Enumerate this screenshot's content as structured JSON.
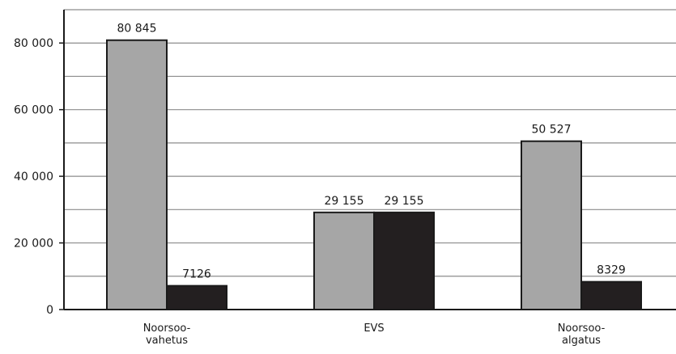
{
  "chart_data": {
    "type": "bar",
    "title": "",
    "xlabel": "",
    "ylabel": "",
    "categories": [
      [
        "Noorsoo-",
        "vahetus"
      ],
      [
        "EVS"
      ],
      [
        "Noorsoo-",
        "algatus"
      ]
    ],
    "series": [
      {
        "values": [
          80845,
          29155,
          50527
        ],
        "labels": [
          "80 845",
          "29 155",
          "50 527"
        ],
        "color": "#a6a6a6"
      },
      {
        "values": [
          7126,
          29155,
          8329
        ],
        "labels": [
          "7126",
          "29 155",
          "8329"
        ],
        "color": "#231f20"
      }
    ],
    "ylim": [
      0,
      90000
    ],
    "yticks": [
      0,
      20000,
      40000,
      60000,
      80000
    ],
    "ytick_labels": [
      "0",
      "20 000",
      "40 000",
      "60 000",
      "80 000"
    ],
    "minor_gridlines": [
      10000,
      30000,
      50000,
      70000,
      90000
    ],
    "grid": true,
    "legend": "none"
  }
}
